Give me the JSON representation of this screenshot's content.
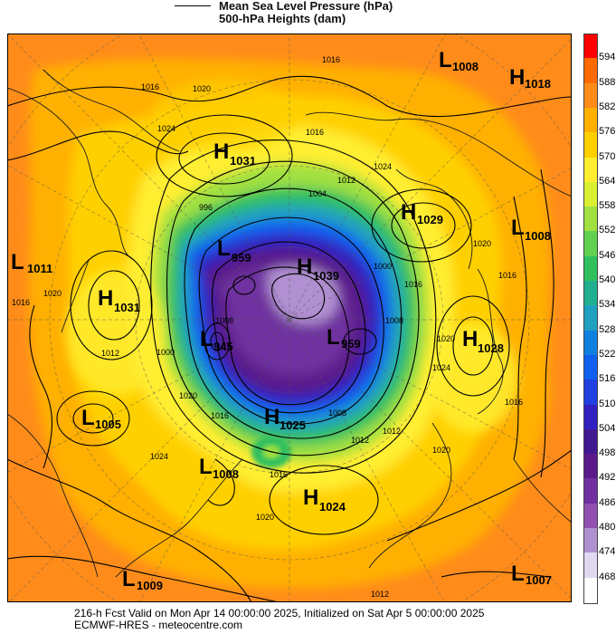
{
  "header": {
    "legend_title": "Mean Sea Level Pressure (hPa)",
    "legend_subtitle": "500-hPa Heights (dam)"
  },
  "footer": {
    "line1": "216-h Fcst Valid on Mon Apr 14 00:00:00 2025, Initialized on Sat Apr  5 00:00:00 2025",
    "line2": "ECMWF-HRES  - meteocentre.com"
  },
  "colorbar": {
    "labels": [
      "594",
      "588",
      "582",
      "576",
      "570",
      "564",
      "558",
      "552",
      "546",
      "540",
      "534",
      "528",
      "522",
      "516",
      "510",
      "504",
      "498",
      "492",
      "486",
      "480",
      "474",
      "468"
    ],
    "colors": [
      "#ff0000",
      "#ff6a00",
      "#ff8c1a",
      "#ffb000",
      "#ffd000",
      "#ffee30",
      "#d8f030",
      "#a0e040",
      "#60d050",
      "#30c060",
      "#20b090",
      "#20a0c0",
      "#1080e0",
      "#1060f0",
      "#2040e0",
      "#3020c0",
      "#401890",
      "#5a1a8a",
      "#7030a0",
      "#9050b0",
      "#b090d0",
      "#e0d8f0",
      "#ffffff"
    ]
  },
  "pressure_systems": [
    {
      "type": "L",
      "value": "1008"
    },
    {
      "type": "H",
      "value": "1018"
    },
    {
      "type": "H",
      "value": "1031"
    },
    {
      "type": "H",
      "value": "1029"
    },
    {
      "type": "L",
      "value": "1008"
    },
    {
      "type": "L",
      "value": "1011"
    },
    {
      "type": "H",
      "value": "1031"
    },
    {
      "type": "L",
      "value": "959"
    },
    {
      "type": "H",
      "value": "1039"
    },
    {
      "type": "L",
      "value": "945"
    },
    {
      "type": "L",
      "value": "959"
    },
    {
      "type": "H",
      "value": "1028"
    },
    {
      "type": "L",
      "value": "1005"
    },
    {
      "type": "H",
      "value": "1025"
    },
    {
      "type": "L",
      "value": "1008"
    },
    {
      "type": "H",
      "value": "1024"
    },
    {
      "type": "L",
      "value": "1009"
    },
    {
      "type": "L",
      "value": "1007"
    }
  ],
  "contour_labels": [
    "1016",
    "1020",
    "1024",
    "1016",
    "1024",
    "1012",
    "1004",
    "996",
    "1016",
    "1008",
    "1020",
    "1012",
    "1016",
    "1020",
    "1016",
    "1008",
    "1000",
    "1016",
    "1020",
    "1024",
    "1016",
    "1020",
    "1000",
    "1008",
    "1012",
    "1012",
    "1016",
    "1020",
    "1024",
    "1016",
    "1012",
    "1020"
  ]
}
